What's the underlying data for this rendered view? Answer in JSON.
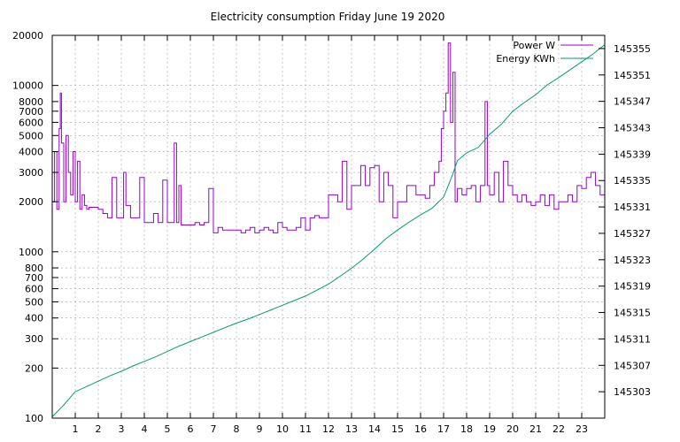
{
  "chart_data": {
    "type": "line",
    "title": "Electricity consumption Friday June 19 2020",
    "grid": true,
    "legend_position": "top-right",
    "x_axis": {
      "range": [
        0,
        24
      ],
      "ticks": [
        1,
        2,
        3,
        4,
        5,
        6,
        7,
        8,
        9,
        10,
        11,
        12,
        13,
        14,
        15,
        16,
        17,
        18,
        19,
        20,
        21,
        22,
        23
      ]
    },
    "y_axis_left": {
      "scale": "log",
      "range": [
        100,
        20000
      ],
      "tick_values": [
        100,
        200,
        300,
        400,
        500,
        600,
        700,
        800,
        1000,
        2000,
        3000,
        4000,
        5000,
        6000,
        7000,
        8000,
        10000,
        20000
      ],
      "tick_labels": [
        "100",
        "200",
        "300",
        "400",
        "500",
        "600",
        "700",
        "800",
        "1000",
        "2000",
        "3000",
        "4000",
        "5000",
        "6000",
        "7000",
        "8000",
        "10000",
        "20000"
      ]
    },
    "y_axis_right": {
      "scale": "linear",
      "range": [
        145299,
        145357
      ],
      "tick_values": [
        145303,
        145307,
        145311,
        145315,
        145319,
        145323,
        145327,
        145331,
        145335,
        145339,
        145343,
        145347,
        145351,
        145355
      ],
      "tick_labels": [
        "145303",
        "145307",
        "145311",
        "145315",
        "145319",
        "145323",
        "145327",
        "145331",
        "145335",
        "145339",
        "145343",
        "145347",
        "145351",
        "145355"
      ]
    },
    "series": [
      {
        "name": "Power W",
        "axis": "left",
        "color": "#9400d3",
        "x": [
          0,
          0.1,
          0.2,
          0.3,
          0.35,
          0.4,
          0.5,
          0.6,
          0.7,
          0.8,
          0.9,
          1.0,
          1.1,
          1.2,
          1.3,
          1.4,
          1.5,
          1.6,
          1.8,
          2.0,
          2.2,
          2.4,
          2.5,
          2.6,
          2.8,
          3.0,
          3.1,
          3.2,
          3.4,
          3.6,
          3.8,
          4.0,
          4.2,
          4.4,
          4.6,
          4.8,
          5.0,
          5.2,
          5.3,
          5.4,
          5.5,
          5.6,
          5.8,
          6.0,
          6.2,
          6.4,
          6.6,
          6.8,
          7.0,
          7.2,
          7.4,
          7.6,
          7.8,
          8.0,
          8.2,
          8.4,
          8.6,
          8.8,
          9.0,
          9.2,
          9.4,
          9.6,
          9.8,
          10.0,
          10.2,
          10.4,
          10.6,
          10.8,
          11.0,
          11.2,
          11.4,
          11.6,
          11.8,
          12.0,
          12.2,
          12.4,
          12.6,
          12.8,
          13.0,
          13.2,
          13.4,
          13.6,
          13.8,
          14.0,
          14.2,
          14.4,
          14.6,
          14.8,
          15.0,
          15.2,
          15.4,
          15.6,
          15.8,
          16.0,
          16.2,
          16.4,
          16.6,
          16.8,
          16.9,
          17.0,
          17.1,
          17.2,
          17.3,
          17.4,
          17.5,
          17.6,
          17.8,
          18.0,
          18.2,
          18.4,
          18.6,
          18.8,
          18.9,
          19.0,
          19.2,
          19.4,
          19.6,
          19.8,
          20.0,
          20.2,
          20.4,
          20.6,
          20.8,
          21.0,
          21.2,
          21.4,
          21.6,
          21.8,
          22.0,
          22.2,
          22.4,
          22.6,
          22.8,
          23.0,
          23.2,
          23.4,
          23.6,
          23.8,
          24.0
        ],
        "values": [
          2000,
          4000,
          1800,
          5500,
          9000,
          4500,
          2000,
          5000,
          3000,
          2200,
          4000,
          2000,
          3500,
          1800,
          2200,
          1900,
          1800,
          1850,
          1850,
          1800,
          1700,
          1600,
          1600,
          2800,
          1600,
          1600,
          3000,
          1900,
          1600,
          1600,
          2800,
          1500,
          1500,
          1700,
          1500,
          2700,
          1500,
          1500,
          4500,
          1500,
          2500,
          1450,
          1450,
          1450,
          1500,
          1450,
          1500,
          2400,
          1300,
          1400,
          1350,
          1350,
          1350,
          1350,
          1300,
          1350,
          1400,
          1300,
          1350,
          1400,
          1350,
          1300,
          1500,
          1400,
          1350,
          1350,
          1400,
          1600,
          1350,
          1600,
          1650,
          1600,
          1600,
          2200,
          2200,
          2000,
          3500,
          1800,
          2500,
          2500,
          3300,
          2500,
          3200,
          3300,
          2000,
          3000,
          2500,
          1600,
          2000,
          2000,
          2500,
          2500,
          2200,
          2200,
          2100,
          2500,
          3000,
          3500,
          5500,
          7000,
          9000,
          18000,
          6000,
          12000,
          2000,
          2400,
          2200,
          2400,
          2500,
          2000,
          2500,
          8000,
          2500,
          2200,
          3000,
          2000,
          3500,
          2500,
          2200,
          2000,
          2200,
          2000,
          1900,
          2000,
          2200,
          1900,
          2200,
          1800,
          2000,
          2000,
          2200,
          2000,
          2500,
          2400,
          2800,
          3000,
          2500,
          2200,
          2500
        ]
      },
      {
        "name": "Energy KWh",
        "axis": "right",
        "color": "#009e73",
        "x": [
          0,
          0.5,
          1.0,
          1.5,
          2.0,
          2.5,
          3.0,
          3.5,
          4.0,
          4.5,
          5.0,
          5.5,
          6.0,
          6.5,
          7.0,
          7.5,
          8.0,
          8.5,
          9.0,
          9.5,
          10.0,
          10.5,
          11.0,
          11.5,
          12.0,
          12.5,
          13.0,
          13.5,
          14.0,
          14.5,
          15.0,
          15.5,
          16.0,
          16.5,
          17.0,
          17.2,
          17.4,
          17.6,
          18.0,
          18.5,
          19.0,
          19.5,
          20.0,
          20.5,
          21.0,
          21.5,
          22.0,
          22.5,
          23.0,
          23.5,
          24.0
        ],
        "values": [
          145299.2,
          145301.0,
          145303.0,
          145303.8,
          145304.6,
          145305.4,
          145306.1,
          145306.9,
          145307.6,
          145308.3,
          145309.1,
          145309.9,
          145310.6,
          145311.3,
          145312.0,
          145312.7,
          145313.4,
          145314.0,
          145314.7,
          145315.4,
          145316.1,
          145316.8,
          145317.5,
          145318.4,
          145319.3,
          145320.5,
          145321.7,
          145323.1,
          145324.6,
          145326.2,
          145327.5,
          145328.7,
          145329.8,
          145330.8,
          145332.5,
          145334.2,
          145336.0,
          145338.0,
          145339.2,
          145340.0,
          145342.0,
          145343.5,
          145345.5,
          145346.8,
          145348.0,
          145349.5,
          145350.6,
          145351.8,
          145353.0,
          145354.2,
          145355.6
        ]
      }
    ]
  }
}
